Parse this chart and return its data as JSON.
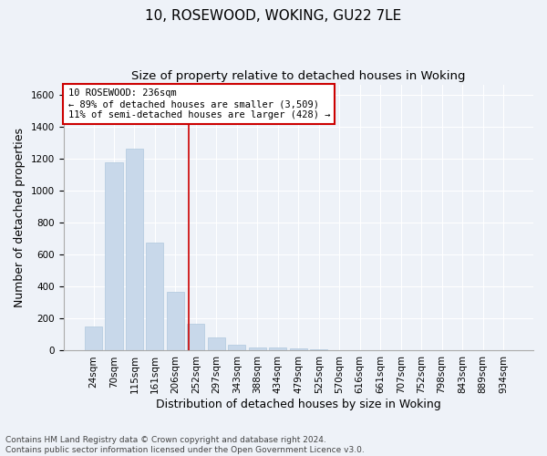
{
  "title": "10, ROSEWOOD, WOKING, GU22 7LE",
  "subtitle": "Size of property relative to detached houses in Woking",
  "xlabel": "Distribution of detached houses by size in Woking",
  "ylabel": "Number of detached properties",
  "bar_color": "#c8d8ea",
  "bar_edge_color": "#b0c8de",
  "bg_color": "#eef2f8",
  "grid_color": "#ffffff",
  "categories": [
    "24sqm",
    "70sqm",
    "115sqm",
    "161sqm",
    "206sqm",
    "252sqm",
    "297sqm",
    "343sqm",
    "388sqm",
    "434sqm",
    "479sqm",
    "525sqm",
    "570sqm",
    "616sqm",
    "661sqm",
    "707sqm",
    "752sqm",
    "798sqm",
    "843sqm",
    "889sqm",
    "934sqm"
  ],
  "values": [
    148,
    1175,
    1260,
    675,
    370,
    170,
    85,
    35,
    22,
    20,
    15,
    10,
    0,
    0,
    0,
    0,
    0,
    0,
    0,
    0,
    0
  ],
  "ylim": [
    0,
    1660
  ],
  "yticks": [
    0,
    200,
    400,
    600,
    800,
    1000,
    1200,
    1400,
    1600
  ],
  "annotation_text": "10 ROSEWOOD: 236sqm\n← 89% of detached houses are smaller (3,509)\n11% of semi-detached houses are larger (428) →",
  "annotation_box_color": "#ffffff",
  "annotation_border_color": "#cc0000",
  "vline_color": "#cc0000",
  "footnote": "Contains HM Land Registry data © Crown copyright and database right 2024.\nContains public sector information licensed under the Open Government Licence v3.0.",
  "title_fontsize": 11,
  "subtitle_fontsize": 9.5,
  "xlabel_fontsize": 9,
  "ylabel_fontsize": 9,
  "tick_fontsize": 7.5,
  "annot_fontsize": 7.5,
  "footnote_fontsize": 6.5
}
